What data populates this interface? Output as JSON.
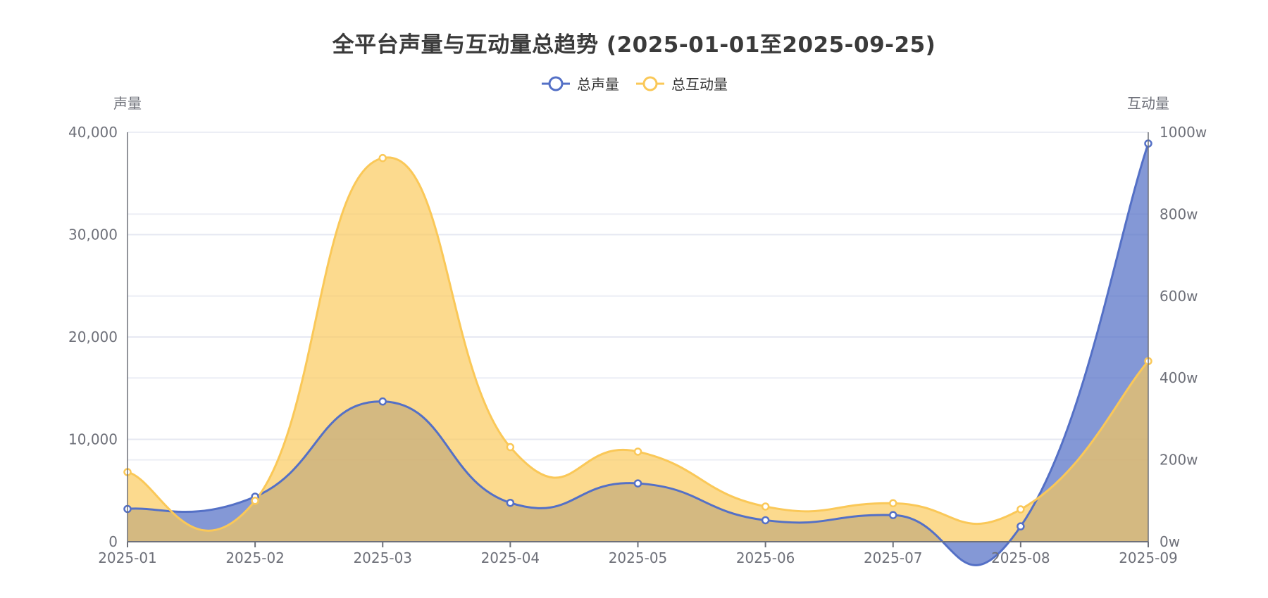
{
  "chart_data": {
    "type": "area",
    "title": "全平台声量与互动量总趋势 (2025-01-01至2025-09-25)",
    "categories": [
      "2025-01",
      "2025-02",
      "2025-03",
      "2025-04",
      "2025-05",
      "2025-06",
      "2025-07",
      "2025-08",
      "2025-09"
    ],
    "y_left": {
      "name": "声量",
      "min": 0,
      "max": 40000,
      "ticks": [
        "0",
        "10,000",
        "20,000",
        "30,000",
        "40,000"
      ]
    },
    "y_right": {
      "name": "互动量",
      "min": 0,
      "max": 10000000,
      "ticks": [
        "0w",
        "200w",
        "400w",
        "600w",
        "800w",
        "1000w"
      ]
    },
    "series": [
      {
        "name": "总声量",
        "axis": "left",
        "color": "#5470c6",
        "values": [
          3200,
          4400,
          13700,
          3800,
          5700,
          2100,
          2600,
          1500,
          38900
        ]
      },
      {
        "name": "总互动量",
        "axis": "right",
        "color": "#fac858",
        "values": [
          1700000,
          1000000,
          9370000,
          2310000,
          2200000,
          860000,
          940000,
          790000,
          4410000
        ]
      }
    ],
    "grid": true,
    "smooth": true,
    "legend_position": "top-center"
  }
}
